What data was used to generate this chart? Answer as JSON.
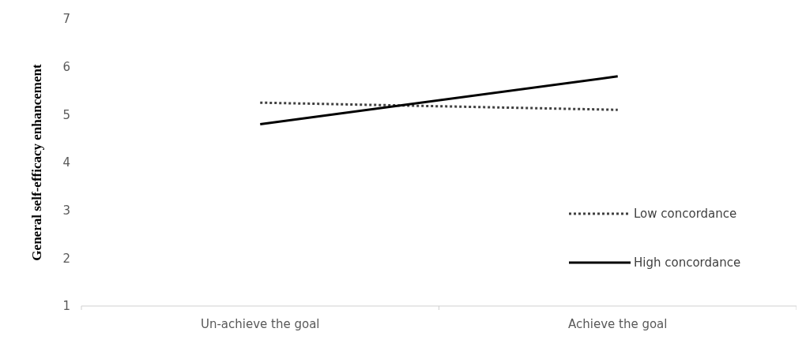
{
  "chart_data": {
    "type": "line",
    "ylabel": "General self-efficacy enhancement",
    "categories": [
      "Un-achieve the goal",
      "Achieve the goal"
    ],
    "ylim": [
      1,
      7
    ],
    "yticks": [
      1,
      2,
      3,
      4,
      5,
      6,
      7
    ],
    "grid": false,
    "legend": "right",
    "series": [
      {
        "name": "Low concordance",
        "color": "#404040",
        "line_style": "dotted",
        "values": [
          5.25,
          5.1
        ]
      },
      {
        "name": "High concordance",
        "color": "#000000",
        "line_style": "solid",
        "values": [
          4.8,
          5.8
        ]
      }
    ]
  }
}
